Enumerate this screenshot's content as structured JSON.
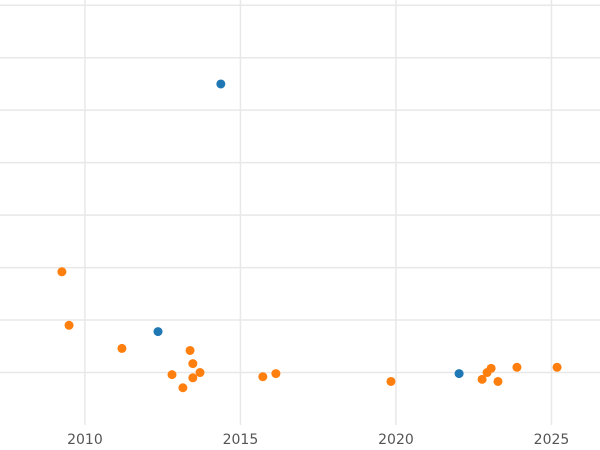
{
  "chart_data": {
    "type": "scatter",
    "xlim": [
      2007.27,
      2026.56
    ],
    "xticks": [
      2010,
      2015,
      2020,
      2025
    ],
    "ylim": [
      -1,
      7.1
    ],
    "yticks": [
      0,
      1,
      2,
      3,
      4,
      5,
      6,
      7
    ],
    "show_ytick_labels": false,
    "grid": true,
    "series": [
      {
        "color": "#1f77b4",
        "x": [
          2014.37,
          2012.35,
          2022.03
        ],
        "values": [
          5.5,
          0.78,
          -0.02
        ]
      },
      {
        "color": "#ff7f0e",
        "x": [
          2009.26,
          2009.49,
          2011.19,
          2013.38,
          2013.47,
          2012.8,
          2013.7,
          2013.47,
          2013.15,
          2015.72,
          2016.14,
          2019.84,
          2022.77,
          2022.93,
          2023.06,
          2023.28,
          2023.89,
          2025.18
        ],
        "values": [
          1.92,
          0.9,
          0.46,
          0.42,
          0.17,
          -0.04,
          0,
          -0.1,
          -0.29,
          -0.08,
          -0.02,
          -0.17,
          -0.13,
          0,
          0.08,
          -0.17,
          0.1,
          0.1
        ]
      }
    ]
  }
}
